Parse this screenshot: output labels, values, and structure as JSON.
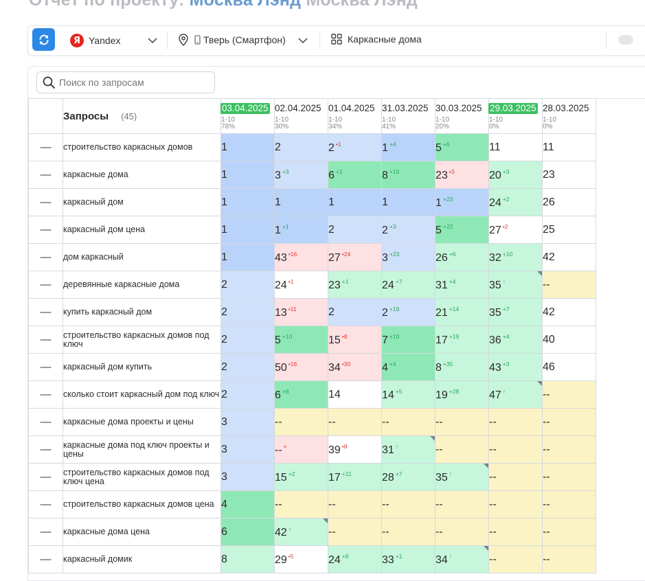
{
  "page": {
    "title_prefix": "Отчет по проекту: ",
    "title_project": "Москва Лэнд",
    "title_suffix": " Москва Лэнд"
  },
  "toolbar": {
    "search_engine": "Yandex",
    "search_engine_logo": "Я",
    "region": "Тверь (Смартфон)",
    "group": "Каркасные дома"
  },
  "search": {
    "placeholder": "Поиск по запросам"
  },
  "table": {
    "header_label": "Запросы",
    "header_count": "(45)",
    "dash": "—",
    "dates": [
      {
        "date": "03.04.2025",
        "range": "1-10",
        "pct": "78%",
        "current": true
      },
      {
        "date": "02.04.2025",
        "range": "1-10",
        "pct": "30%",
        "current": false
      },
      {
        "date": "01.04.2025",
        "range": "1-10",
        "pct": "34%",
        "current": false
      },
      {
        "date": "31.03.2025",
        "range": "1-10",
        "pct": "41%",
        "current": false
      },
      {
        "date": "30.03.2025",
        "range": "1-10",
        "pct": "20%",
        "current": false
      },
      {
        "date": "29.03.2025",
        "range": "1-10",
        "pct": "0%",
        "current": true
      },
      {
        "date": "28.03.2025",
        "range": "1-10",
        "pct": "0%",
        "current": false
      }
    ],
    "rows": [
      {
        "query": "строительство каркасных домов",
        "cells": [
          {
            "v": "1",
            "c": "blue"
          },
          {
            "v": "2",
            "c": "lblue"
          },
          {
            "v": "2",
            "d": "1",
            "dir": "dn",
            "c": "lblue"
          },
          {
            "v": "1",
            "d": "4",
            "dir": "up",
            "c": "blue"
          },
          {
            "v": "5",
            "d": "6",
            "dir": "up",
            "c": "green"
          },
          {
            "v": "11",
            "c": "white"
          },
          {
            "v": "11",
            "c": "white"
          }
        ]
      },
      {
        "query": "каркасные дома",
        "cells": [
          {
            "v": "1",
            "c": "blue"
          },
          {
            "v": "3",
            "d": "3",
            "dir": "up",
            "c": "lblue"
          },
          {
            "v": "6",
            "d": "2",
            "dir": "up",
            "c": "green"
          },
          {
            "v": "8",
            "d": "15",
            "dir": "up",
            "c": "green"
          },
          {
            "v": "23",
            "d": "3",
            "dir": "dn",
            "c": "pink"
          },
          {
            "v": "20",
            "d": "3",
            "dir": "up",
            "c": "lgreen"
          },
          {
            "v": "23",
            "c": "white"
          }
        ]
      },
      {
        "query": "каркасный дом",
        "cells": [
          {
            "v": "1",
            "c": "blue"
          },
          {
            "v": "1",
            "c": "blue"
          },
          {
            "v": "1",
            "c": "blue"
          },
          {
            "v": "1",
            "c": "blue"
          },
          {
            "v": "1",
            "d": "23",
            "dir": "up",
            "c": "blue"
          },
          {
            "v": "24",
            "d": "2",
            "dir": "up",
            "c": "lgreen"
          },
          {
            "v": "26",
            "c": "white"
          }
        ]
      },
      {
        "query": "каркасный дом цена",
        "cells": [
          {
            "v": "1",
            "c": "blue"
          },
          {
            "v": "1",
            "d": "1",
            "dir": "up",
            "c": "blue"
          },
          {
            "v": "2",
            "c": "lblue"
          },
          {
            "v": "2",
            "d": "3",
            "dir": "up",
            "c": "lblue"
          },
          {
            "v": "5",
            "d": "22",
            "dir": "up",
            "c": "green"
          },
          {
            "v": "27",
            "d": "2",
            "dir": "dn",
            "c": "white"
          },
          {
            "v": "25",
            "c": "white"
          }
        ]
      },
      {
        "query": "дом каркасный",
        "cells": [
          {
            "v": "1",
            "c": "blue"
          },
          {
            "v": "43",
            "d": "16",
            "dir": "dn",
            "c": "pink"
          },
          {
            "v": "27",
            "d": "24",
            "dir": "dn",
            "c": "pink"
          },
          {
            "v": "3",
            "d": "23",
            "dir": "up",
            "c": "lblue"
          },
          {
            "v": "26",
            "d": "6",
            "dir": "up",
            "c": "lgreen"
          },
          {
            "v": "32",
            "d": "10",
            "dir": "up",
            "c": "lgreen"
          },
          {
            "v": "42",
            "c": "white"
          }
        ]
      },
      {
        "query": "деревянные каркасные дома",
        "cells": [
          {
            "v": "2",
            "c": "lblue"
          },
          {
            "v": "24",
            "d": "1",
            "dir": "dn",
            "c": "white"
          },
          {
            "v": "23",
            "d": "1",
            "dir": "up",
            "c": "lgreen"
          },
          {
            "v": "24",
            "d": "7",
            "dir": "up",
            "c": "lgreen"
          },
          {
            "v": "31",
            "d": "4",
            "dir": "up",
            "c": "lgreen"
          },
          {
            "v": "35",
            "d": "↑",
            "dir": "up",
            "c": "lgreen",
            "corner": true
          },
          {
            "v": "--",
            "c": "yellow"
          }
        ]
      },
      {
        "query": "купить каркасный дом",
        "cells": [
          {
            "v": "2",
            "c": "lblue"
          },
          {
            "v": "13",
            "d": "11",
            "dir": "dn",
            "c": "pink"
          },
          {
            "v": "2",
            "c": "lblue"
          },
          {
            "v": "2",
            "d": "19",
            "dir": "up",
            "c": "lblue"
          },
          {
            "v": "21",
            "d": "14",
            "dir": "up",
            "c": "lgreen"
          },
          {
            "v": "35",
            "d": "7",
            "dir": "up",
            "c": "lgreen"
          },
          {
            "v": "42",
            "c": "white"
          }
        ]
      },
      {
        "query": "строительство каркасных домов под ключ",
        "cells": [
          {
            "v": "2",
            "c": "lblue"
          },
          {
            "v": "5",
            "d": "10",
            "dir": "up",
            "c": "green"
          },
          {
            "v": "15",
            "d": "8",
            "dir": "dn",
            "c": "pink"
          },
          {
            "v": "7",
            "d": "10",
            "dir": "up",
            "c": "green"
          },
          {
            "v": "17",
            "d": "19",
            "dir": "up",
            "c": "lgreen"
          },
          {
            "v": "36",
            "d": "4",
            "dir": "up",
            "c": "lgreen"
          },
          {
            "v": "40",
            "c": "white"
          }
        ]
      },
      {
        "query": "каркасный дом купить",
        "cells": [
          {
            "v": "2",
            "c": "lblue"
          },
          {
            "v": "50",
            "d": "16",
            "dir": "dn",
            "c": "pink"
          },
          {
            "v": "34",
            "d": "30",
            "dir": "dn",
            "c": "pink"
          },
          {
            "v": "4",
            "d": "4",
            "dir": "up",
            "c": "green"
          },
          {
            "v": "8",
            "d": "35",
            "dir": "up",
            "c": "lgreen"
          },
          {
            "v": "43",
            "d": "3",
            "dir": "up",
            "c": "lgreen"
          },
          {
            "v": "46",
            "c": "white"
          }
        ]
      },
      {
        "query": "сколько стоит каркасный дом под ключ",
        "cells": [
          {
            "v": "2",
            "c": "lblue"
          },
          {
            "v": "6",
            "d": "8",
            "dir": "up",
            "c": "green"
          },
          {
            "v": "14",
            "c": "white"
          },
          {
            "v": "14",
            "d": "5",
            "dir": "up",
            "c": "lgreen"
          },
          {
            "v": "19",
            "d": "28",
            "dir": "up",
            "c": "lgreen"
          },
          {
            "v": "47",
            "d": "↑",
            "dir": "up",
            "c": "lgreen",
            "corner": true
          },
          {
            "v": "--",
            "c": "yellow"
          }
        ]
      },
      {
        "query": "каркасные дома проекты и цены",
        "cells": [
          {
            "v": "3",
            "c": "lblue"
          },
          {
            "v": "--",
            "c": "yellow"
          },
          {
            "v": "--",
            "c": "yellow"
          },
          {
            "v": "--",
            "c": "yellow"
          },
          {
            "v": "--",
            "c": "yellow"
          },
          {
            "v": "--",
            "c": "yellow"
          },
          {
            "v": "--",
            "c": "yellow"
          }
        ]
      },
      {
        "query": "каркасные дома под ключ проекты и цены",
        "cells": [
          {
            "v": "3",
            "c": "lblue"
          },
          {
            "v": "--",
            "d": "×",
            "dir": "dn",
            "c": "pink"
          },
          {
            "v": "39",
            "d": "8",
            "dir": "dn",
            "c": "white"
          },
          {
            "v": "31",
            "d": "↑",
            "dir": "up",
            "c": "lgreen",
            "corner": true
          },
          {
            "v": "--",
            "c": "yellow"
          },
          {
            "v": "--",
            "c": "yellow"
          },
          {
            "v": "--",
            "c": "yellow"
          }
        ]
      },
      {
        "query": "строительство каркасных домов под ключ цена",
        "cells": [
          {
            "v": "3",
            "c": "lblue"
          },
          {
            "v": "15",
            "d": "2",
            "dir": "up",
            "c": "lgreen"
          },
          {
            "v": "17",
            "d": "11",
            "dir": "up",
            "c": "lgreen"
          },
          {
            "v": "28",
            "d": "7",
            "dir": "up",
            "c": "lgreen"
          },
          {
            "v": "35",
            "d": "↑",
            "dir": "up",
            "c": "lgreen",
            "corner": true
          },
          {
            "v": "--",
            "c": "yellow"
          },
          {
            "v": "--",
            "c": "yellow"
          }
        ]
      },
      {
        "query": "строительство каркасных домов цена",
        "cells": [
          {
            "v": "4",
            "c": "green"
          },
          {
            "v": "--",
            "c": "yellow"
          },
          {
            "v": "--",
            "c": "yellow"
          },
          {
            "v": "--",
            "c": "yellow"
          },
          {
            "v": "--",
            "c": "yellow"
          },
          {
            "v": "--",
            "c": "yellow"
          },
          {
            "v": "--",
            "c": "yellow"
          }
        ]
      },
      {
        "query": "каркасные дома цена",
        "cells": [
          {
            "v": "6",
            "c": "green"
          },
          {
            "v": "42",
            "d": "↑",
            "dir": "up",
            "c": "lgreen",
            "corner": true
          },
          {
            "v": "--",
            "c": "yellow"
          },
          {
            "v": "--",
            "c": "yellow"
          },
          {
            "v": "--",
            "c": "yellow"
          },
          {
            "v": "--",
            "c": "yellow"
          },
          {
            "v": "--",
            "c": "yellow"
          }
        ]
      },
      {
        "query": "каркасный домик",
        "cells": [
          {
            "v": "8",
            "c": "lgreen"
          },
          {
            "v": "29",
            "d": "5",
            "dir": "dn",
            "c": "white"
          },
          {
            "v": "24",
            "d": "9",
            "dir": "up",
            "c": "lgreen"
          },
          {
            "v": "33",
            "d": "1",
            "dir": "up",
            "c": "lgreen"
          },
          {
            "v": "34",
            "d": "↑",
            "dir": "up",
            "c": "lgreen",
            "corner": true
          },
          {
            "v": "--",
            "c": "yellow"
          },
          {
            "v": "--",
            "c": "yellow"
          }
        ]
      }
    ]
  }
}
